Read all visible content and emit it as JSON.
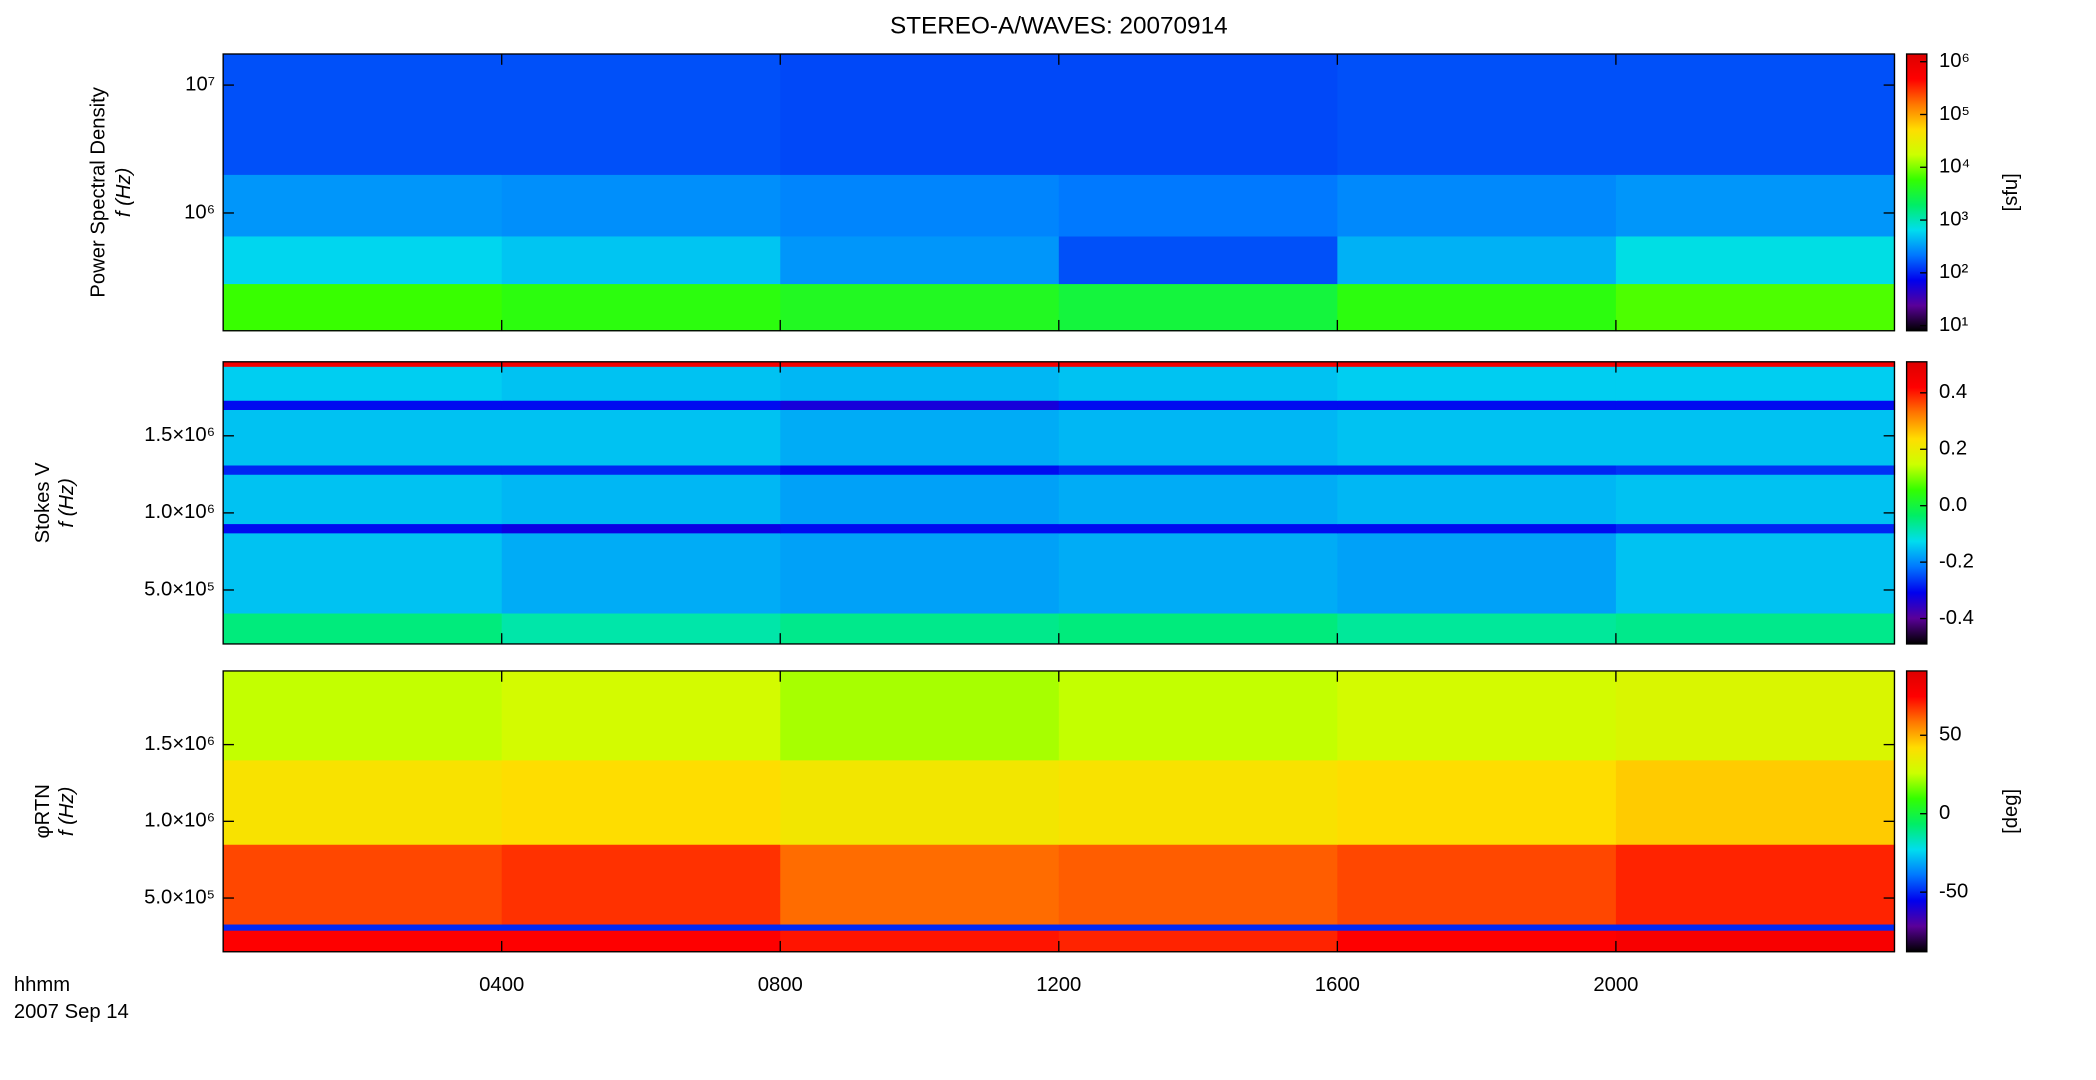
{
  "chart_data": {
    "type": "spectrogram",
    "title": "STEREO-A/WAVES: 20070914",
    "xlabel": "hhmm",
    "date": "2007 Sep 14",
    "xlim": [
      0,
      24
    ],
    "xticks": [
      {
        "value": 4,
        "label": "0400"
      },
      {
        "value": 8,
        "label": "0800"
      },
      {
        "value": 12,
        "label": "1200"
      },
      {
        "value": 16,
        "label": "1600"
      },
      {
        "value": 20,
        "label": "2000"
      }
    ],
    "time_edges": [
      0,
      4,
      8,
      12,
      16,
      20,
      24
    ],
    "colormap": [
      "#000000",
      "#5a0099",
      "#0000ee",
      "#0077ff",
      "#00ddee",
      "#00ee66",
      "#33ff00",
      "#ccff00",
      "#ffdd00",
      "#ff7700",
      "#ff0000",
      "#dd0000"
    ],
    "panels": [
      {
        "ylabel": [
          "Power Spectral Density",
          "f (Hz)"
        ],
        "yscale": "log",
        "ylim": [
          120000,
          17500000
        ],
        "yticks": [
          {
            "value": 1000000,
            "label": "10⁶"
          },
          {
            "value": 10000000,
            "label": "10⁷"
          }
        ],
        "freq_edges": [
          120000,
          280000,
          660000,
          2000000,
          17500000
        ],
        "z": [
          [
            6000,
            5000,
            4000,
            3000,
            5000,
            7000
          ],
          [
            600,
            500,
            300,
            150,
            400,
            700
          ],
          [
            300,
            280,
            250,
            220,
            260,
            300
          ],
          [
            150,
            150,
            140,
            140,
            150,
            150
          ]
        ],
        "cscale": "log",
        "clim": [
          8,
          1400000
        ],
        "clabel": "[sfu]",
        "cticks": [
          {
            "value": 10,
            "label": "10¹"
          },
          {
            "value": 100,
            "label": "10²"
          },
          {
            "value": 1000,
            "label": "10³"
          },
          {
            "value": 10000,
            "label": "10⁴"
          },
          {
            "value": 100000,
            "label": "10⁵"
          },
          {
            "value": 1000000,
            "label": "10⁶"
          }
        ]
      },
      {
        "ylabel": [
          "Stokes V",
          "f (Hz)"
        ],
        "yscale": "linear",
        "ylim": [
          150000,
          1980000
        ],
        "yticks": [
          {
            "value": 500000,
            "label": "5.0×10⁵"
          },
          {
            "value": 1000000,
            "label": "1.0×10⁶"
          },
          {
            "value": 1500000,
            "label": "1.5×10⁶"
          }
        ],
        "freq_edges": [
          150000,
          350000,
          870000,
          930000,
          1250000,
          1310000,
          1670000,
          1730000,
          1950000,
          1980000
        ],
        "z": [
          [
            -0.05,
            -0.08,
            -0.06,
            -0.05,
            -0.07,
            -0.06
          ],
          [
            -0.15,
            -0.17,
            -0.18,
            -0.17,
            -0.18,
            -0.15
          ],
          [
            -0.3,
            -0.32,
            -0.3,
            -0.3,
            -0.3,
            -0.28
          ],
          [
            -0.15,
            -0.16,
            -0.18,
            -0.17,
            -0.16,
            -0.15
          ],
          [
            -0.28,
            -0.28,
            -0.3,
            -0.28,
            -0.28,
            -0.27
          ],
          [
            -0.15,
            -0.15,
            -0.17,
            -0.16,
            -0.15,
            -0.15
          ],
          [
            -0.3,
            -0.3,
            -0.33,
            -0.3,
            -0.3,
            -0.3
          ],
          [
            -0.14,
            -0.15,
            -0.16,
            -0.15,
            -0.14,
            -0.14
          ],
          [
            0.45,
            0.45,
            0.45,
            0.45,
            0.45,
            0.45
          ]
        ],
        "cscale": "linear",
        "clim": [
          -0.49,
          0.51
        ],
        "cticks": [
          -0.4,
          -0.2,
          {
            "value": 0,
            "label": "0.0"
          },
          0.2,
          0.4
        ]
      },
      {
        "ylabel": [
          "φRTN",
          "f (Hz)"
        ],
        "yscale": "linear",
        "ylim": [
          150000,
          1980000
        ],
        "yticks": [
          {
            "value": 500000,
            "label": "5.0×10⁵"
          },
          {
            "value": 1000000,
            "label": "1.0×10⁶"
          },
          {
            "value": 1500000,
            "label": "1.5×10⁶"
          }
        ],
        "freq_edges": [
          150000,
          290000,
          330000,
          850000,
          1400000,
          1980000
        ],
        "z": [
          [
            75,
            75,
            72,
            70,
            75,
            78
          ],
          [
            -50,
            -50,
            -50,
            -50,
            -50,
            -50
          ],
          [
            65,
            68,
            60,
            62,
            65,
            70
          ],
          [
            40,
            42,
            38,
            40,
            42,
            45
          ],
          [
            25,
            28,
            22,
            25,
            28,
            30
          ]
        ],
        "cscale": "linear",
        "clim": [
          -88,
          91
        ],
        "clabel": "[deg]",
        "cticks": [
          -50,
          0,
          50
        ]
      }
    ]
  }
}
